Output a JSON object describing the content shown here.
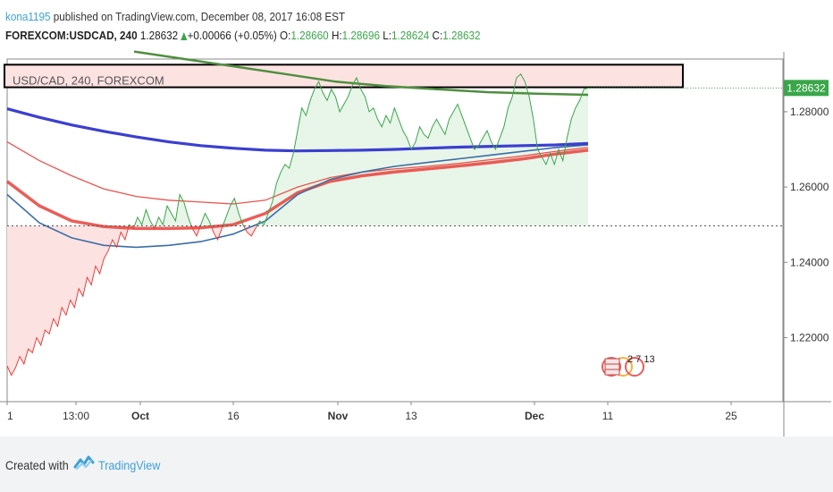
{
  "header": {
    "user": "kona1195",
    "published_text": " published on TradingView.com, December 08, 2017 16:08 EST"
  },
  "symbol_line": {
    "symbol": "FOREXCOM:USDCAD, 240",
    "last": "1.28632",
    "change": "+0.00066 (+0.05%)",
    "open_label": "O:",
    "open": "1.28660",
    "high_label": "H:",
    "high": "1.28696",
    "low_label": "L:",
    "low": "1.28624",
    "close_label": "C:",
    "close": "1.28632"
  },
  "overlay_label": "USD/CAD, 240, FOREXCOM",
  "price_tag": "1.28632",
  "ticks_text": "2 7 13",
  "footer": {
    "created_with": "Created with",
    "brand": "TradingView"
  },
  "colors": {
    "price_line": "#3aa64a",
    "sma_blue": "#3b3fd0",
    "sma_red": "#e8413b",
    "resistance_fill": "#fde2e2",
    "positive_fill": "#e8f5e9",
    "negative_fill": "#fde2e2",
    "brand": "#3ea0d8"
  },
  "chart_data": {
    "type": "line",
    "x_tick_labels": [
      "1",
      "13:00",
      "Oct",
      "16",
      "Nov",
      "13",
      "Dec",
      "11",
      "25"
    ],
    "y_tick_labels": [
      "1.28000",
      "1.26000",
      "1.24000",
      "1.22000"
    ],
    "ylim": [
      1.203,
      1.294
    ],
    "last_price": 1.28632,
    "baseline": 1.2497,
    "resistance_zone": [
      1.2865,
      1.2925
    ],
    "series": [
      {
        "role": "price",
        "values": [
          1.2125,
          1.21,
          1.212,
          1.215,
          1.213,
          1.217,
          1.216,
          1.22,
          1.218,
          1.222,
          1.221,
          1.225,
          1.223,
          1.228,
          1.226,
          1.23,
          1.228,
          1.233,
          1.231,
          1.236,
          1.234,
          1.239,
          1.237,
          1.241,
          1.243,
          1.246,
          1.244,
          1.248,
          1.246,
          1.25,
          1.249,
          1.252,
          1.25,
          1.254,
          1.251,
          1.249,
          1.252,
          1.25,
          1.255,
          1.253,
          1.251,
          1.258,
          1.256,
          1.252,
          1.249,
          1.247,
          1.25,
          1.253,
          1.251,
          1.248,
          1.246,
          1.249,
          1.252,
          1.255,
          1.257,
          1.253,
          1.25,
          1.248,
          1.247,
          1.249,
          1.251,
          1.25,
          1.253,
          1.256,
          1.261,
          1.264,
          1.266,
          1.265,
          1.269,
          1.275,
          1.281,
          1.279,
          1.283,
          1.286,
          1.288,
          1.285,
          1.283,
          1.286,
          1.284,
          1.28,
          1.282,
          1.284,
          1.287,
          1.289,
          1.286,
          1.284,
          1.28,
          1.281,
          1.278,
          1.276,
          1.279,
          1.277,
          1.281,
          1.278,
          1.275,
          1.273,
          1.27,
          1.272,
          1.276,
          1.274,
          1.273,
          1.276,
          1.278,
          1.276,
          1.274,
          1.278,
          1.28,
          1.282,
          1.279,
          1.276,
          1.273,
          1.27,
          1.271,
          1.273,
          1.275,
          1.272,
          1.27,
          1.273,
          1.276,
          1.281,
          1.284,
          1.289,
          1.29,
          1.288,
          1.284,
          1.278,
          1.27,
          1.268,
          1.266,
          1.269,
          1.266,
          1.27,
          1.267,
          1.273,
          1.278,
          1.281,
          1.283,
          1.286,
          1.2863
        ]
      },
      {
        "role": "sma-blue",
        "values": [
          1.2808,
          1.2785,
          1.2765,
          1.2748,
          1.2733,
          1.272,
          1.271,
          1.2703,
          1.2698,
          1.2696,
          1.2697,
          1.2698,
          1.27,
          1.2703,
          1.2706,
          1.2708,
          1.271,
          1.2712,
          1.2716
        ]
      },
      {
        "role": "sma-steel",
        "values": [
          1.258,
          1.2505,
          1.2465,
          1.2445,
          1.244,
          1.2445,
          1.2455,
          1.2475,
          1.251,
          1.258,
          1.262,
          1.264,
          1.2655,
          1.2665,
          1.2675,
          1.2685,
          1.2695,
          1.2705,
          1.2712
        ]
      },
      {
        "role": "sma-red-upper",
        "values": [
          1.272,
          1.267,
          1.263,
          1.2595,
          1.2575,
          1.2565,
          1.256,
          1.2555,
          1.2565,
          1.26,
          1.2625,
          1.264,
          1.2648,
          1.2655,
          1.2663,
          1.2673,
          1.2683,
          1.2695,
          1.2705
        ]
      },
      {
        "role": "sma-red-lower",
        "values": [
          1.2615,
          1.255,
          1.251,
          1.2495,
          1.249,
          1.249,
          1.2492,
          1.25,
          1.253,
          1.2585,
          1.2615,
          1.263,
          1.264,
          1.2648,
          1.2656,
          1.2665,
          1.2675,
          1.2688,
          1.2698
        ]
      },
      {
        "role": "sma-green-long",
        "values": [
          1.296,
          1.294,
          1.292,
          1.29,
          1.288,
          1.2868,
          1.286,
          1.2852,
          1.2848,
          1.2845
        ]
      }
    ]
  }
}
